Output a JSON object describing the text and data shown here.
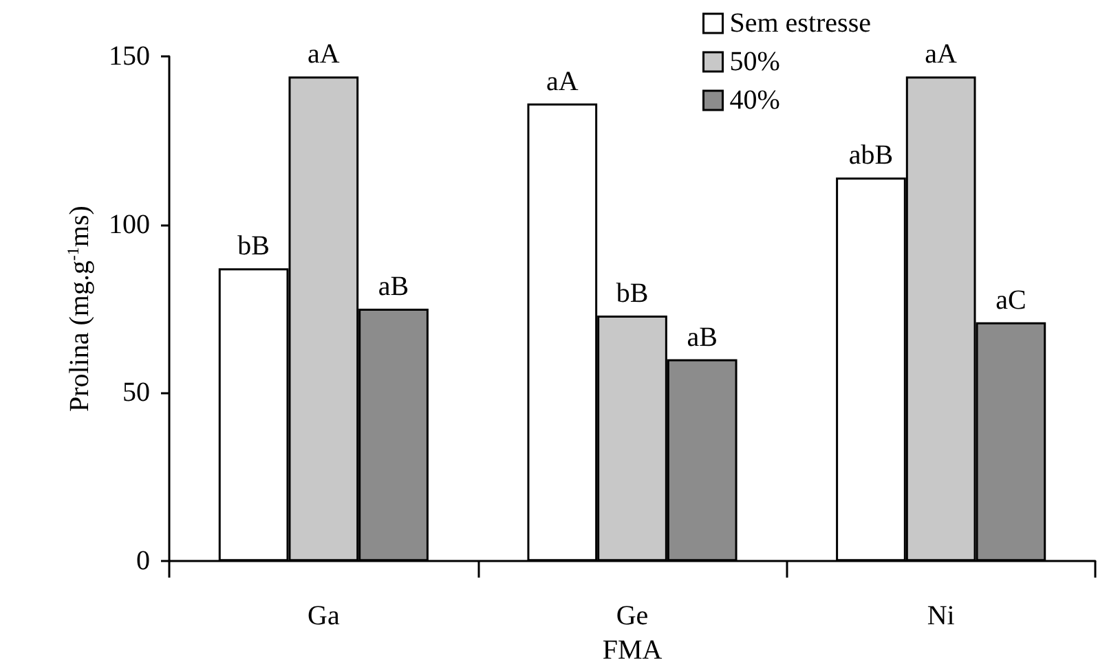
{
  "chart_data": {
    "type": "bar",
    "xlabel": "FMA",
    "ylabel": "Prolina (mg.g$^{-1}$ms)",
    "categories": [
      "Ga",
      "Ge",
      "Ni"
    ],
    "series": [
      {
        "name": "Sem estresse",
        "color": "#ffffff",
        "values": [
          87,
          136,
          114
        ],
        "value_labels": [
          "bB",
          "aA",
          "abB"
        ]
      },
      {
        "name": "50%",
        "color": "#c8c8c8",
        "values": [
          144,
          73,
          144
        ],
        "value_labels": [
          "aA",
          "bB",
          "aA"
        ]
      },
      {
        "name": "40%",
        "color": "#8c8c8c",
        "values": [
          75,
          60,
          71
        ],
        "value_labels": [
          "aB",
          "aB",
          "aC"
        ]
      }
    ],
    "ylim": [
      0,
      150
    ],
    "yticks": [
      0,
      50,
      100,
      150
    ],
    "grid": false,
    "legend": "top right"
  }
}
